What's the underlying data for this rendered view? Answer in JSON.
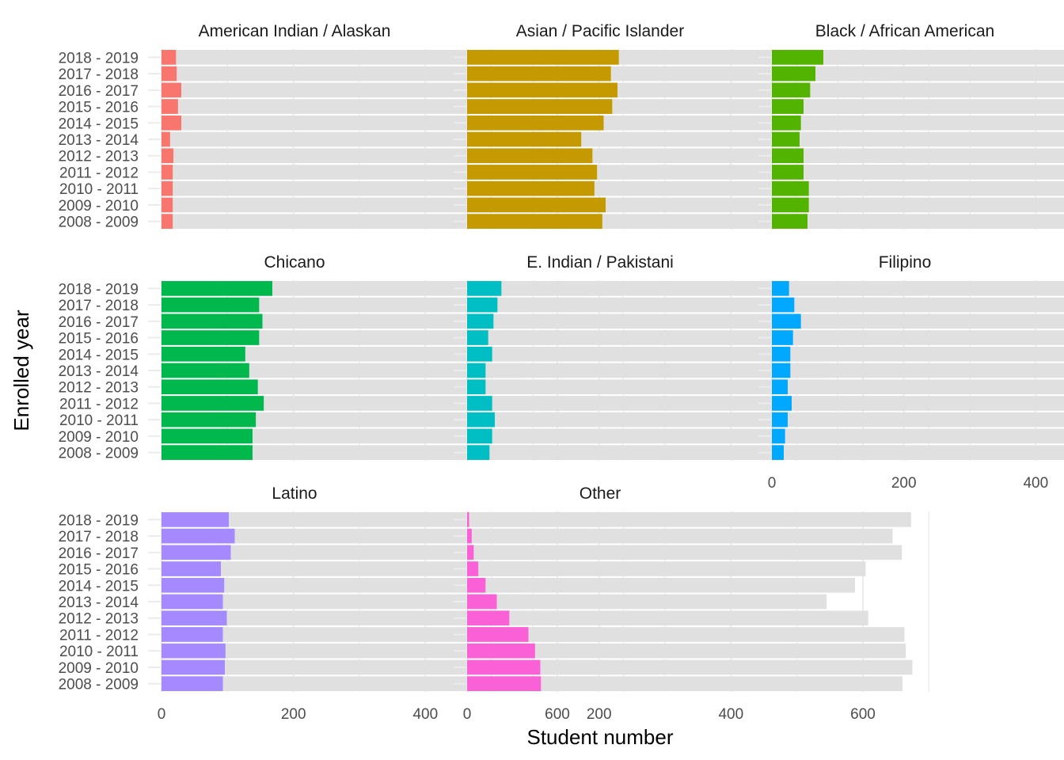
{
  "chart_data": {
    "type": "bar",
    "orientation": "horizontal",
    "facet_layout": {
      "columns": 3,
      "rows": 3
    },
    "xlabel": "Student number",
    "ylabel": "Enrolled year",
    "xlim": [
      0,
      700
    ],
    "x_ticks": [
      0,
      200,
      400,
      600
    ],
    "grid": true,
    "categories": [
      "2008 - 2009",
      "2009 - 2010",
      "2010 - 2011",
      "2011 - 2012",
      "2012 - 2013",
      "2013 - 2014",
      "2014 - 2015",
      "2015 - 2016",
      "2016 - 2017",
      "2017 - 2018",
      "2018 - 2019"
    ],
    "total_color": "#e0e0e0",
    "totals": [
      660,
      675,
      665,
      663,
      608,
      545,
      588,
      604,
      659,
      645,
      673
    ],
    "facets": [
      {
        "title": "American Indian / Alaskan",
        "color": "#f8766d",
        "values": [
          17,
          17,
          17,
          17,
          18,
          13,
          30,
          25,
          30,
          23,
          22
        ]
      },
      {
        "title": "Asian / Pacific Islander",
        "color": "#c49a00",
        "values": [
          205,
          210,
          193,
          197,
          190,
          173,
          207,
          220,
          228,
          218,
          230
        ]
      },
      {
        "title": "Black / African American",
        "color": "#53b400",
        "values": [
          54,
          56,
          56,
          48,
          48,
          42,
          44,
          48,
          58,
          66,
          78
        ]
      },
      {
        "title": "Chicano",
        "color": "#00b84c",
        "values": [
          138,
          138,
          143,
          155,
          146,
          133,
          127,
          148,
          153,
          148,
          168
        ]
      },
      {
        "title": "E. Indian / Pakistani",
        "color": "#00bfc4",
        "values": [
          34,
          38,
          42,
          38,
          28,
          28,
          38,
          32,
          40,
          46,
          52
        ]
      },
      {
        "title": "Filipino",
        "color": "#00a9ff",
        "values": [
          18,
          20,
          24,
          30,
          24,
          28,
          28,
          32,
          44,
          34,
          26
        ]
      },
      {
        "title": "Latino",
        "color": "#a58aff",
        "values": [
          93,
          96,
          97,
          93,
          99,
          93,
          95,
          90,
          105,
          111,
          102
        ]
      },
      {
        "title": "Other",
        "color": "#fb61d7",
        "values": [
          112,
          111,
          103,
          93,
          64,
          45,
          28,
          17,
          10,
          7,
          3
        ]
      }
    ]
  }
}
